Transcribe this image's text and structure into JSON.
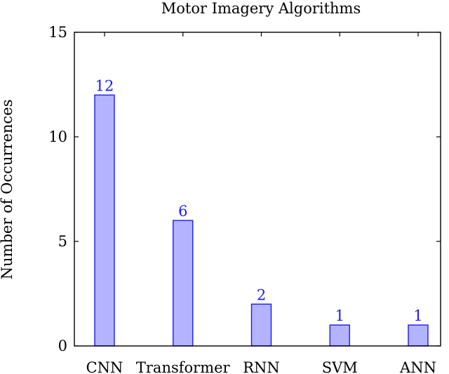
{
  "chart_data": {
    "type": "bar",
    "title": "Motor Imagery Algorithms",
    "xlabel": "",
    "ylabel": "Number of Occurrences",
    "categories": [
      "CNN",
      "Transformer",
      "RNN",
      "SVM",
      "ANN"
    ],
    "values": [
      12,
      6,
      2,
      1,
      1
    ],
    "data_labels": [
      "12",
      "6",
      "2",
      "1",
      "1"
    ],
    "ylim": [
      0,
      15
    ],
    "yticks": [
      0,
      5,
      10,
      15
    ],
    "ytick_labels": [
      "0",
      "5",
      "10",
      "15"
    ],
    "grid": false,
    "legend": "none",
    "colors": {
      "bar_fill": "#b3b3ff",
      "bar_stroke": "#1a1aff",
      "data_label": "#1a1aff",
      "axis": "#000000"
    }
  }
}
